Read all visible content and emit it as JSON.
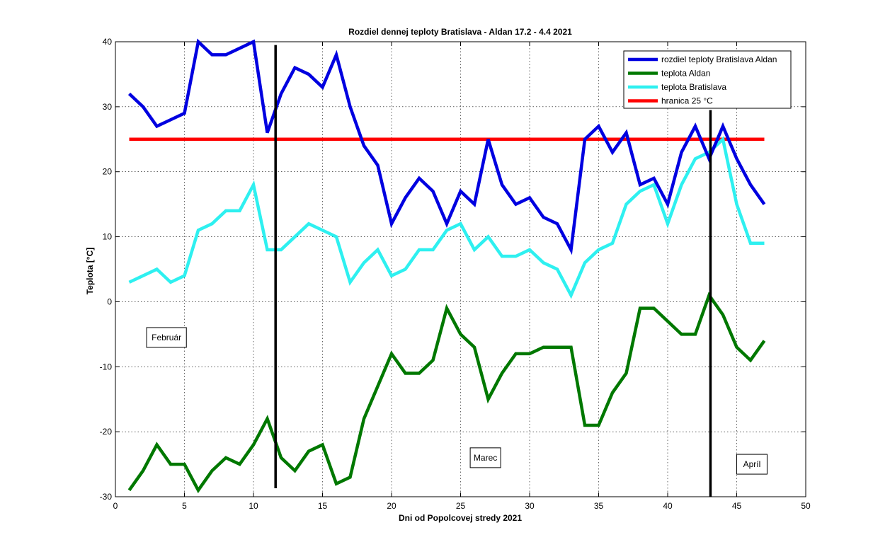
{
  "chart_data": {
    "type": "line",
    "title": "Rozdiel dennej teploty Bratislava - Aldan 17.2 - 4.4 2021",
    "xlabel": "Dni od Popolcovej stredy 2021",
    "ylabel": "Teplota [°C]",
    "xlim": [
      0,
      50
    ],
    "ylim": [
      -30,
      40
    ],
    "xticks": [
      0,
      5,
      10,
      15,
      20,
      25,
      30,
      35,
      40,
      45,
      50
    ],
    "yticks": [
      -30,
      -20,
      -10,
      0,
      10,
      20,
      30,
      40
    ],
    "grid": true,
    "legend_position": "top-right",
    "x": [
      1,
      2,
      3,
      4,
      5,
      6,
      7,
      8,
      9,
      10,
      11,
      12,
      13,
      14,
      15,
      16,
      17,
      18,
      19,
      20,
      21,
      22,
      23,
      24,
      25,
      26,
      27,
      28,
      29,
      30,
      31,
      32,
      33,
      34,
      35,
      36,
      37,
      38,
      39,
      40,
      41,
      42,
      43,
      44,
      45,
      46,
      47
    ],
    "series": [
      {
        "name": "rozdiel teploty Bratislava Aldan",
        "color": "#0000e0",
        "values": [
          32,
          30,
          27,
          28,
          29,
          40,
          38,
          38,
          39,
          40,
          26,
          32,
          36,
          35,
          33,
          38,
          30,
          24,
          21,
          12,
          16,
          19,
          17,
          12,
          17,
          15,
          25,
          18,
          15,
          16,
          13,
          12,
          8,
          25,
          27,
          23,
          26,
          18,
          19,
          15,
          23,
          27,
          22,
          27,
          22,
          18,
          15
        ]
      },
      {
        "name": "teplota Aldan",
        "color": "#007800",
        "values": [
          -29,
          -26,
          -22,
          -25,
          -25,
          -29,
          -26,
          -24,
          -25,
          -22,
          -18,
          -24,
          -26,
          -23,
          -22,
          -28,
          -27,
          -18,
          -13,
          -8,
          -11,
          -11,
          -9,
          -1,
          -5,
          -7,
          -15,
          -11,
          -8,
          -8,
          -7,
          -7,
          -7,
          -19,
          -19,
          -14,
          -11,
          -1,
          -1,
          -3,
          -5,
          -5,
          1,
          -2,
          -7,
          -9,
          -6
        ]
      },
      {
        "name": "teplota Bratislava",
        "color": "#2ef0f0",
        "values": [
          3,
          4,
          5,
          3,
          4,
          11,
          12,
          14,
          14,
          18,
          8,
          8,
          10,
          12,
          11,
          10,
          3,
          6,
          8,
          4,
          5,
          8,
          8,
          11,
          12,
          8,
          10,
          7,
          7,
          8,
          6,
          5,
          1,
          6,
          8,
          9,
          15,
          17,
          18,
          12,
          18,
          22,
          23,
          25,
          15,
          9,
          9
        ]
      },
      {
        "name": "hranica 25 °C",
        "color": "#ff0000",
        "x": [
          1,
          47
        ],
        "values": [
          25,
          25
        ]
      }
    ],
    "vertical_lines": [
      {
        "x": 11.6,
        "y_range": [
          -28.7,
          39.5
        ]
      },
      {
        "x": 43.1,
        "y_range": [
          -30,
          29.5
        ]
      }
    ],
    "annotations": [
      {
        "text": "Február",
        "x": 3.7,
        "y": -5.5
      },
      {
        "text": "Marec",
        "x": 26.8,
        "y": -24
      },
      {
        "text": "Apríl",
        "x": 46.1,
        "y": -25
      }
    ]
  }
}
